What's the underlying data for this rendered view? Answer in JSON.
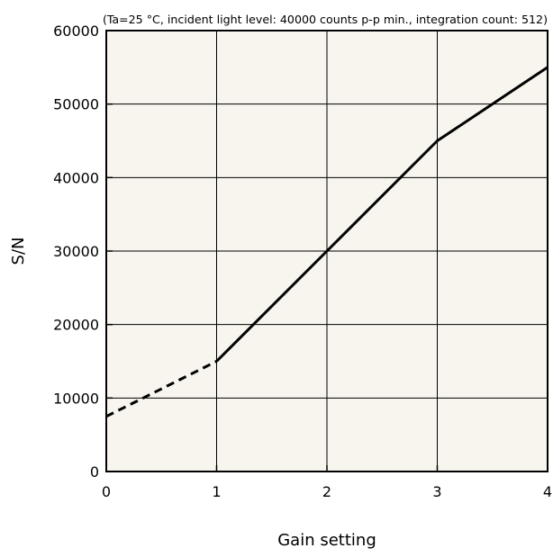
{
  "chart_data": {
    "type": "line",
    "annotation": "(Ta=25 °C, incident light level: 40000 counts p-p min., integration count: 512)",
    "xlabel": "Gain setting",
    "ylabel": "S/N",
    "xlim": [
      0,
      4
    ],
    "ylim": [
      0,
      60000
    ],
    "x_ticks": [
      "0",
      "1",
      "2",
      "3",
      "4"
    ],
    "y_ticks": [
      "0",
      "10000",
      "20000",
      "30000",
      "40000",
      "50000",
      "60000"
    ],
    "grid": true,
    "series": [
      {
        "style": "dashed",
        "x": [
          0,
          1
        ],
        "y": [
          7500,
          15000
        ]
      },
      {
        "style": "solid",
        "x": [
          1,
          2,
          3,
          4
        ],
        "y": [
          15000,
          30000,
          45000,
          55000
        ]
      }
    ],
    "colors": {
      "plot_background": "#f7f5ee",
      "line": "#000000",
      "grid": "#000000"
    }
  }
}
